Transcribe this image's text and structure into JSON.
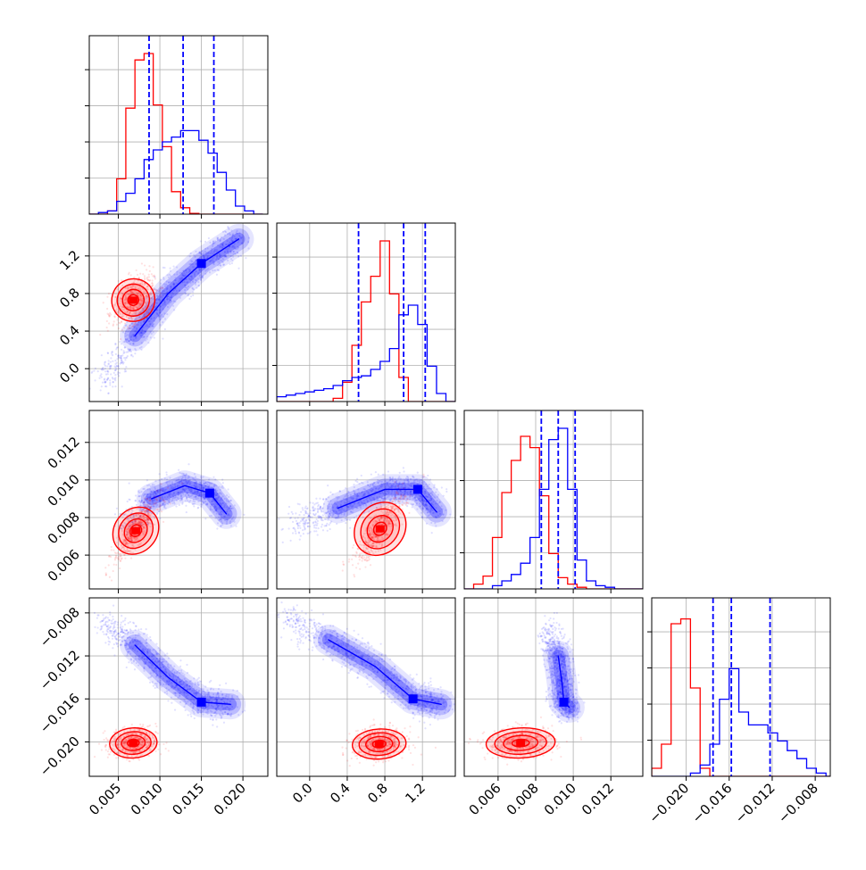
{
  "chart_data": {
    "type": "corner",
    "description_series_colors": {
      "red": "#ff0000",
      "blue": "#0000ff"
    },
    "parameters": [
      "p1",
      "p2",
      "p3",
      "p4"
    ],
    "ranges": {
      "p1": [
        0.0015,
        0.023
      ],
      "p2": [
        -0.35,
        1.55
      ],
      "p3": [
        0.0042,
        0.0137
      ],
      "p4": [
        -0.0232,
        -0.0066
      ]
    },
    "ticks": {
      "p1": {
        "values": [
          0.005,
          0.01,
          0.015,
          0.02
        ],
        "labels": [
          "0.005",
          "0.010",
          "0.015",
          "0.020"
        ]
      },
      "p2": {
        "values": [
          0.0,
          0.4,
          0.8,
          1.2
        ],
        "labels": [
          "0.0",
          "0.4",
          "0.8",
          "1.2"
        ]
      },
      "p3": {
        "values": [
          0.006,
          0.008,
          0.01,
          0.012
        ],
        "labels": [
          "0.006",
          "0.008",
          "0.010",
          "0.012"
        ]
      },
      "p4": {
        "values": [
          -0.02,
          -0.016,
          -0.012,
          -0.008
        ],
        "labels": [
          "−0.020",
          "−0.016",
          "−0.012",
          "−0.008"
        ]
      }
    },
    "grid": true,
    "series": [
      {
        "color": "#ff0000",
        "marginals": {
          "p1": {
            "edges": [
              0.0015,
              0.0026,
              0.0037,
              0.0048,
              0.0059,
              0.007,
              0.0081,
              0.0092,
              0.0103,
              0.0114,
              0.0125,
              0.0136,
              0.0147,
              0.0158,
              0.0169,
              0.018,
              0.0191,
              0.0202,
              0.0213,
              0.0224
            ],
            "counts": [
              0,
              0,
              0.02,
              0.22,
              0.66,
              0.96,
              1.0,
              0.68,
              0.42,
              0.14,
              0.04,
              0.005,
              0,
              0,
              0,
              0,
              0,
              0,
              0
            ]
          },
          "p2": {
            "edges": [
              -0.35,
              -0.25,
              -0.15,
              -0.05,
              0.05,
              0.15,
              0.25,
              0.35,
              0.45,
              0.55,
              0.65,
              0.75,
              0.85,
              0.95,
              1.05,
              1.15,
              1.25,
              1.35,
              1.45,
              1.55
            ],
            "counts": [
              0,
              0,
              0,
              0,
              0,
              0,
              0.02,
              0.12,
              0.35,
              0.62,
              0.78,
              1.0,
              0.67,
              0.15,
              0,
              0,
              0,
              0,
              0
            ]
          },
          "p3": {
            "edges": [
              0.0042,
              0.0047,
              0.0052,
              0.0057,
              0.0062,
              0.0067,
              0.0072,
              0.0077,
              0.0082,
              0.0087,
              0.0092,
              0.0097,
              0.0102,
              0.0107,
              0.0112,
              0.0117,
              0.0122,
              0.0127,
              0.0132,
              0.0137
            ],
            "counts": [
              0,
              0.03,
              0.08,
              0.32,
              0.6,
              0.8,
              0.95,
              0.88,
              0.58,
              0.22,
              0.07,
              0.03,
              0.01,
              0,
              0,
              0,
              0,
              0,
              0
            ]
          },
          "p4": {
            "edges": [
              -0.0232,
              -0.0223,
              -0.0214,
              -0.0205,
              -0.0196,
              -0.0187,
              -0.0178,
              -0.0169,
              -0.016,
              -0.0151,
              -0.0142,
              -0.0133,
              -0.0124,
              -0.0115,
              -0.0106,
              -0.0097,
              -0.0088,
              -0.0079,
              -0.007,
              -0.0061
            ],
            "counts": [
              0.05,
              0.2,
              0.95,
              0.98,
              0.55,
              0.05,
              0,
              0,
              0,
              0,
              0,
              0,
              0,
              0,
              0,
              0,
              0,
              0,
              0
            ]
          }
        },
        "quantiles": {}
      },
      {
        "color": "#0000ff",
        "marginals": {
          "p1": {
            "edges": [
              0.0015,
              0.0026,
              0.0037,
              0.0048,
              0.0059,
              0.007,
              0.0081,
              0.0092,
              0.0103,
              0.0114,
              0.0125,
              0.0136,
              0.0147,
              0.0158,
              0.0169,
              0.018,
              0.0191,
              0.0202,
              0.0213,
              0.0224
            ],
            "counts": [
              0,
              0.01,
              0.02,
              0.08,
              0.13,
              0.22,
              0.34,
              0.4,
              0.45,
              0.48,
              0.52,
              0.52,
              0.46,
              0.38,
              0.26,
              0.15,
              0.05,
              0.02,
              0
            ]
          },
          "p2": {
            "edges": [
              -0.35,
              -0.25,
              -0.15,
              -0.05,
              0.05,
              0.15,
              0.25,
              0.35,
              0.45,
              0.55,
              0.65,
              0.75,
              0.85,
              0.95,
              1.05,
              1.15,
              1.25,
              1.35,
              1.45,
              1.55
            ],
            "counts": [
              0.03,
              0.04,
              0.05,
              0.06,
              0.07,
              0.08,
              0.1,
              0.13,
              0.15,
              0.16,
              0.2,
              0.25,
              0.33,
              0.54,
              0.6,
              0.48,
              0.22,
              0.05,
              0
            ]
          },
          "p3": {
            "edges": [
              0.0042,
              0.0047,
              0.0052,
              0.0057,
              0.0062,
              0.0067,
              0.0072,
              0.0077,
              0.0082,
              0.0087,
              0.0092,
              0.0097,
              0.0102,
              0.0107,
              0.0112,
              0.0117,
              0.0122,
              0.0127,
              0.0132,
              0.0137
            ],
            "counts": [
              0,
              0,
              0,
              0.02,
              0.05,
              0.09,
              0.16,
              0.32,
              0.62,
              0.93,
              1.0,
              0.62,
              0.18,
              0.05,
              0.02,
              0.01,
              0,
              0,
              0
            ]
          },
          "p4": {
            "edges": [
              -0.0232,
              -0.0223,
              -0.0214,
              -0.0205,
              -0.0196,
              -0.0187,
              -0.0178,
              -0.0169,
              -0.016,
              -0.0151,
              -0.0142,
              -0.0133,
              -0.0124,
              -0.0115,
              -0.0106,
              -0.0097,
              -0.0088,
              -0.0079,
              -0.007,
              -0.0061
            ],
            "counts": [
              0,
              0,
              0,
              0,
              0.02,
              0.07,
              0.2,
              0.48,
              0.67,
              0.4,
              0.32,
              0.32,
              0.27,
              0.22,
              0.16,
              0.11,
              0.05,
              0.02,
              0
            ]
          }
        },
        "quantiles": {
          "p1": [
            0.0087,
            0.0128,
            0.0165
          ],
          "p2": [
            0.52,
            1.0,
            1.23
          ],
          "p3": [
            0.0083,
            0.0092,
            0.0101
          ],
          "p4": [
            -0.0175,
            -0.0158,
            -0.0122
          ]
        }
      }
    ],
    "blobs": {
      "red": {
        "p1_p2": {
          "center": [
            0.0068,
            0.73
          ],
          "sx": 0.0012,
          "sy": 0.13,
          "rho": 0.45
        },
        "p1_p3": {
          "center": [
            0.0071,
            0.0073
          ],
          "sx": 0.0013,
          "sy": 0.0008,
          "rho": 0.85
        },
        "p2_p3": {
          "center": [
            0.75,
            0.0074
          ],
          "sx": 0.13,
          "sy": 0.0009,
          "rho": 0.85
        },
        "p1_p4": {
          "center": [
            0.0068,
            -0.0201
          ],
          "sx": 0.0014,
          "sy": 0.0007,
          "rho": 0.1
        },
        "p2_p4": {
          "center": [
            0.74,
            -0.0202
          ],
          "sx": 0.14,
          "sy": 0.0007,
          "rho": 0.1
        },
        "p3_p4": {
          "center": [
            0.0072,
            -0.0201
          ],
          "sx": 0.0009,
          "sy": 0.0007,
          "rho": 0.1
        }
      },
      "blue_ridges": {
        "p1_p2": [
          [
            0.003,
            -0.15
          ],
          [
            0.007,
            0.35
          ],
          [
            0.011,
            0.8
          ],
          [
            0.015,
            1.12
          ],
          [
            0.0195,
            1.38
          ]
        ],
        "p1_p3": [
          [
            0.006,
            0.0075
          ],
          [
            0.009,
            0.009
          ],
          [
            0.013,
            0.0097
          ],
          [
            0.016,
            0.0093
          ],
          [
            0.018,
            0.0082
          ]
        ],
        "p2_p3": [
          [
            -0.2,
            0.0075
          ],
          [
            0.3,
            0.0085
          ],
          [
            0.8,
            0.0095
          ],
          [
            1.15,
            0.0095
          ],
          [
            1.35,
            0.0083
          ]
        ],
        "p1_p4": [
          [
            0.0035,
            -0.009
          ],
          [
            0.007,
            -0.011
          ],
          [
            0.011,
            -0.014
          ],
          [
            0.015,
            -0.0163
          ],
          [
            0.0185,
            -0.0165
          ]
        ],
        "p2_p4": [
          [
            -0.25,
            -0.0085
          ],
          [
            0.2,
            -0.0105
          ],
          [
            0.7,
            -0.013
          ],
          [
            1.1,
            -0.016
          ],
          [
            1.4,
            -0.0165
          ]
        ],
        "p3_p4": [
          [
            0.0088,
            -0.0095
          ],
          [
            0.0092,
            -0.012
          ],
          [
            0.0094,
            -0.0145
          ],
          [
            0.0095,
            -0.0163
          ],
          [
            0.0098,
            -0.0168
          ]
        ]
      }
    }
  }
}
